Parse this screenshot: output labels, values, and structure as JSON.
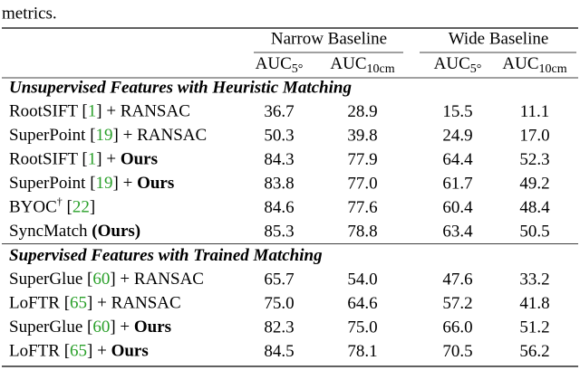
{
  "caption_tail": "metrics.",
  "table": {
    "group_headers": [
      "Narrow Baseline",
      "Wide Baseline"
    ],
    "column_headers": [
      [
        "AUC",
        "5°"
      ],
      [
        "AUC",
        "10cm"
      ],
      [
        "AUC",
        "5°"
      ],
      [
        "AUC",
        "10cm"
      ]
    ],
    "sections": [
      {
        "title": "Unsupervised Features with Heuristic Matching",
        "rows": [
          {
            "method": [
              {
                "text": "RootSIFT ["
              },
              {
                "text": "1",
                "style": "ref"
              },
              {
                "text": "] + RANSAC"
              }
            ],
            "values": [
              "36.7",
              "28.9",
              "15.5",
              "11.1"
            ]
          },
          {
            "method": [
              {
                "text": "SuperPoint ["
              },
              {
                "text": "19",
                "style": "ref"
              },
              {
                "text": "] + RANSAC"
              }
            ],
            "values": [
              "50.3",
              "39.8",
              "24.9",
              "17.0"
            ]
          },
          {
            "method": [
              {
                "text": "RootSIFT ["
              },
              {
                "text": "1",
                "style": "ref"
              },
              {
                "text": "] + "
              },
              {
                "text": "Ours",
                "style": "bold"
              }
            ],
            "values": [
              "84.3",
              "77.9",
              "64.4",
              "52.3"
            ]
          },
          {
            "method": [
              {
                "text": "SuperPoint ["
              },
              {
                "text": "19",
                "style": "ref"
              },
              {
                "text": "] + "
              },
              {
                "text": "Ours",
                "style": "bold"
              }
            ],
            "values": [
              "83.8",
              "77.0",
              "61.7",
              "49.2"
            ]
          },
          {
            "method": [
              {
                "text": "BYOC"
              },
              {
                "text": "†",
                "style": "sup"
              },
              {
                "text": " ["
              },
              {
                "text": "22",
                "style": "ref"
              },
              {
                "text": "]"
              }
            ],
            "values": [
              "84.6",
              "77.6",
              "60.4",
              "48.4"
            ]
          },
          {
            "method": [
              {
                "text": "SyncMatch "
              },
              {
                "text": "(Ours)",
                "style": "bold"
              }
            ],
            "values": [
              "85.3",
              "78.8",
              "63.4",
              "50.5"
            ]
          }
        ]
      },
      {
        "title": "Supervised Features with Trained Matching",
        "rows": [
          {
            "method": [
              {
                "text": "SuperGlue ["
              },
              {
                "text": "60",
                "style": "ref"
              },
              {
                "text": "] + RANSAC"
              }
            ],
            "values": [
              "65.7",
              "54.0",
              "47.6",
              "33.2"
            ]
          },
          {
            "method": [
              {
                "text": "LoFTR ["
              },
              {
                "text": "65",
                "style": "ref"
              },
              {
                "text": "] + RANSAC"
              }
            ],
            "values": [
              "75.0",
              "64.6",
              "57.2",
              "41.8"
            ]
          },
          {
            "method": [
              {
                "text": "SuperGlue ["
              },
              {
                "text": "60",
                "style": "ref"
              },
              {
                "text": "] + "
              },
              {
                "text": "Ours",
                "style": "bold"
              }
            ],
            "values": [
              "82.3",
              "75.0",
              "66.0",
              "51.2"
            ]
          },
          {
            "method": [
              {
                "text": "LoFTR ["
              },
              {
                "text": "65",
                "style": "ref"
              },
              {
                "text": "] + "
              },
              {
                "text": "Ours",
                "style": "bold"
              }
            ],
            "values": [
              "84.5",
              "78.1",
              "70.5",
              "56.2"
            ]
          }
        ]
      }
    ]
  }
}
